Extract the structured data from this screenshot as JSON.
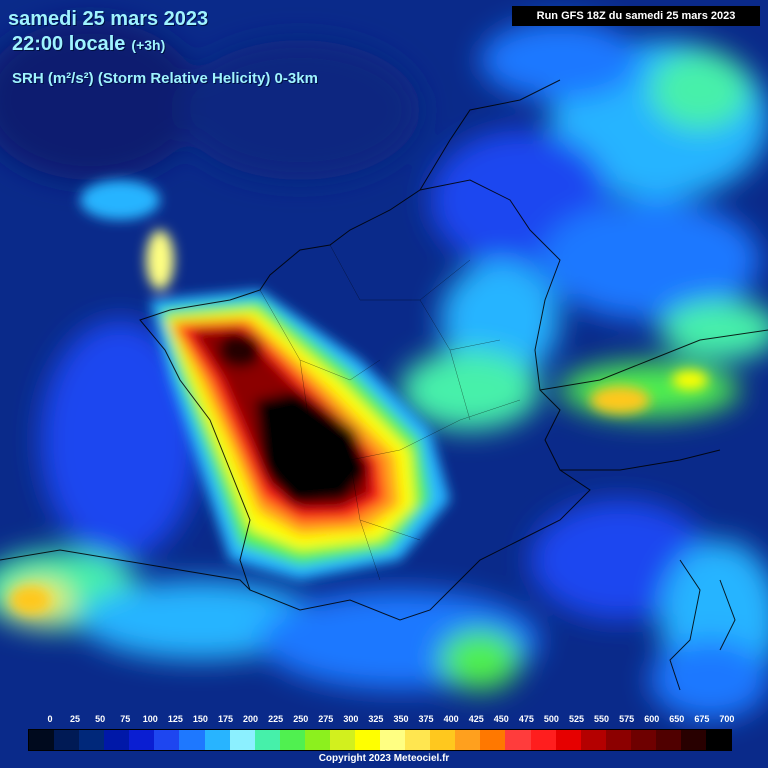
{
  "header": {
    "date": "samedi 25 mars 2023",
    "time": "22:00 locale",
    "offset": "(+3h)",
    "parameter": "SRH (m²/s²) (Storm Relative Helicity) 0-3km"
  },
  "run_label": "Run GFS 18Z du samedi 25 mars 2023",
  "legend": {
    "values": [
      "0",
      "25",
      "50",
      "75",
      "100",
      "125",
      "150",
      "175",
      "200",
      "225",
      "250",
      "275",
      "300",
      "325",
      "350",
      "375",
      "400",
      "425",
      "450",
      "475",
      "500",
      "525",
      "550",
      "575",
      "600",
      "650",
      "675",
      "700"
    ],
    "colors": [
      "#000a1e",
      "#001a55",
      "#00287a",
      "#0018a8",
      "#0a1ed2",
      "#1e46f0",
      "#1e78ff",
      "#28b4ff",
      "#8cf0ff",
      "#46f0aa",
      "#50f050",
      "#8cf01e",
      "#d2f01e",
      "#ffff00",
      "#ffff82",
      "#ffe650",
      "#ffc81e",
      "#ffa01e",
      "#ff7800",
      "#ff3c3c",
      "#ff1e1e",
      "#e60000",
      "#b40000",
      "#8c0000",
      "#6e0000",
      "#500000",
      "#280000",
      "#000000"
    ]
  },
  "copyright": "Copyright 2023 Meteociel.fr",
  "map": {
    "region": "France",
    "background_color": "#0a2a8a",
    "core_color": "#000000"
  }
}
